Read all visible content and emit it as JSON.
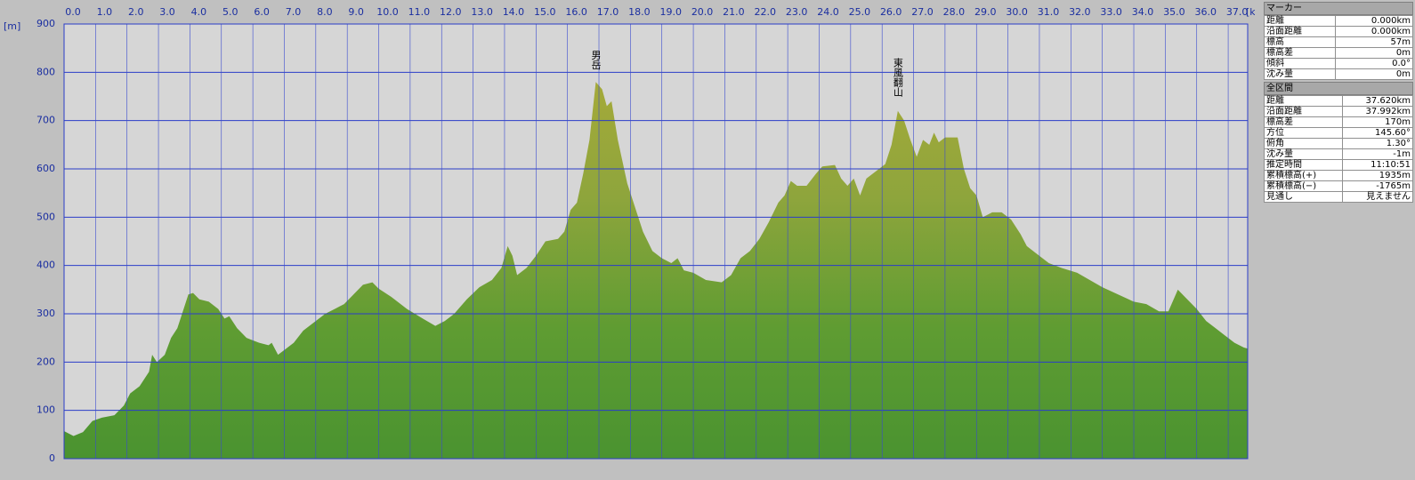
{
  "chart_data": {
    "type": "area",
    "x_unit": "[km]",
    "y_unit": "[m]",
    "x": [
      0,
      0.3,
      0.6,
      0.9,
      1.2,
      1.6,
      1.9,
      2.1,
      2.4,
      2.7,
      2.8,
      2.95,
      3.2,
      3.4,
      3.6,
      3.8,
      3.95,
      4.1,
      4.3,
      4.6,
      4.9,
      5.1,
      5.25,
      5.5,
      5.8,
      6.2,
      6.5,
      6.6,
      6.8,
      7.0,
      7.3,
      7.6,
      8.0,
      8.3,
      8.6,
      8.9,
      9.2,
      9.5,
      9.8,
      10.0,
      10.4,
      10.9,
      11.4,
      11.8,
      12.1,
      12.4,
      12.8,
      13.2,
      13.6,
      13.9,
      14.1,
      14.25,
      14.4,
      14.7,
      15.0,
      15.3,
      15.7,
      15.9,
      16.1,
      16.3,
      16.5,
      16.7,
      16.9,
      17.1,
      17.25,
      17.4,
      17.6,
      17.9,
      18.1,
      18.4,
      18.7,
      19.0,
      19.3,
      19.5,
      19.7,
      20.0,
      20.4,
      20.9,
      21.2,
      21.5,
      21.8,
      22.1,
      22.4,
      22.7,
      22.9,
      23.1,
      23.3,
      23.6,
      23.9,
      24.1,
      24.5,
      24.7,
      24.9,
      25.1,
      25.3,
      25.5,
      25.8,
      26.1,
      26.3,
      26.5,
      26.7,
      26.9,
      27.1,
      27.3,
      27.5,
      27.65,
      27.8,
      28.0,
      28.2,
      28.4,
      28.6,
      28.8,
      29.0,
      29.2,
      29.5,
      29.8,
      30.1,
      30.4,
      30.6,
      30.9,
      31.3,
      31.7,
      32.2,
      32.6,
      33.0,
      33.5,
      34.0,
      34.4,
      34.8,
      35.1,
      35.4,
      35.7,
      36.0,
      36.3,
      36.6,
      36.9,
      37.2,
      37.5,
      37.62
    ],
    "values": [
      57,
      47,
      55,
      78,
      85,
      90,
      110,
      135,
      150,
      180,
      215,
      200,
      215,
      250,
      270,
      310,
      340,
      343,
      330,
      325,
      310,
      290,
      295,
      270,
      250,
      240,
      235,
      240,
      215,
      225,
      240,
      265,
      285,
      300,
      310,
      320,
      340,
      360,
      365,
      352,
      335,
      310,
      290,
      275,
      285,
      300,
      330,
      355,
      370,
      395,
      440,
      420,
      380,
      395,
      420,
      450,
      455,
      470,
      515,
      530,
      590,
      660,
      780,
      765,
      730,
      740,
      660,
      570,
      530,
      470,
      430,
      415,
      405,
      415,
      390,
      385,
      370,
      365,
      380,
      415,
      430,
      455,
      490,
      530,
      545,
      575,
      565,
      565,
      590,
      605,
      608,
      580,
      565,
      580,
      545,
      580,
      595,
      610,
      650,
      720,
      700,
      660,
      625,
      660,
      650,
      675,
      655,
      665,
      665,
      665,
      600,
      560,
      545,
      500,
      510,
      510,
      495,
      465,
      440,
      425,
      405,
      395,
      385,
      370,
      355,
      340,
      325,
      320,
      305,
      305,
      350,
      330,
      310,
      285,
      270,
      255,
      240,
      230,
      228
    ],
    "xlim": [
      0,
      37.62
    ],
    "ylim": [
      0,
      900
    ],
    "xticks": [
      {
        "value": 0,
        "label": "0.0"
      },
      {
        "value": 1,
        "label": "1.0"
      },
      {
        "value": 2,
        "label": "2.0"
      },
      {
        "value": 3,
        "label": "3.0"
      },
      {
        "value": 4,
        "label": "4.0"
      },
      {
        "value": 5,
        "label": "5.0"
      },
      {
        "value": 6,
        "label": "6.0"
      },
      {
        "value": 7,
        "label": "7.0"
      },
      {
        "value": 8,
        "label": "8.0"
      },
      {
        "value": 9,
        "label": "9.0"
      },
      {
        "value": 10,
        "label": "10.0"
      },
      {
        "value": 11,
        "label": "11.0"
      },
      {
        "value": 12,
        "label": "12.0"
      },
      {
        "value": 13,
        "label": "13.0"
      },
      {
        "value": 14,
        "label": "14.0"
      },
      {
        "value": 15,
        "label": "15.0"
      },
      {
        "value": 16,
        "label": "16.0"
      },
      {
        "value": 17,
        "label": "17.0"
      },
      {
        "value": 18,
        "label": "18.0"
      },
      {
        "value": 19,
        "label": "19.0"
      },
      {
        "value": 20,
        "label": "20.0"
      },
      {
        "value": 21,
        "label": "21.0"
      },
      {
        "value": 22,
        "label": "22.0"
      },
      {
        "value": 23,
        "label": "23.0"
      },
      {
        "value": 24,
        "label": "24.0"
      },
      {
        "value": 25,
        "label": "25.0"
      },
      {
        "value": 26,
        "label": "26.0"
      },
      {
        "value": 27,
        "label": "27.0"
      },
      {
        "value": 28,
        "label": "28.0"
      },
      {
        "value": 29,
        "label": "29.0"
      },
      {
        "value": 30,
        "label": "30.0"
      },
      {
        "value": 31,
        "label": "31.0"
      },
      {
        "value": 32,
        "label": "32.0"
      },
      {
        "value": 33,
        "label": "33.0"
      },
      {
        "value": 34,
        "label": "34.0"
      },
      {
        "value": 35,
        "label": "35.0"
      },
      {
        "value": 36,
        "label": "36.0"
      },
      {
        "value": 37,
        "label": "37.0"
      }
    ],
    "yticks": [
      0,
      100,
      200,
      300,
      400,
      500,
      600,
      700,
      800,
      900
    ],
    "grid": true,
    "annotations": [
      {
        "text": "男岳",
        "x": 16.9,
        "y": 780
      },
      {
        "text": "東風翻山",
        "x": 26.5,
        "y": 720
      }
    ]
  },
  "panel": {
    "marker": {
      "title": "マーカー",
      "rows": [
        [
          "距離",
          "0.000km"
        ],
        [
          "沿面距離",
          "0.000km"
        ],
        [
          "標高",
          "57m"
        ],
        [
          "標高差",
          "0m"
        ],
        [
          "傾斜",
          "0.0°"
        ],
        [
          "沈み量",
          "0m"
        ]
      ]
    },
    "section": {
      "title": "全区間",
      "rows": [
        [
          "距離",
          "37.620km"
        ],
        [
          "沿面距離",
          "37.992km"
        ],
        [
          "標高差",
          "170m"
        ],
        [
          "方位",
          "145.60°"
        ],
        [
          "俯角",
          "1.30°"
        ],
        [
          "沈み量",
          "-1m"
        ],
        [
          "推定時間",
          "11:10:51"
        ],
        [
          "累積標高(+)",
          "1935m"
        ],
        [
          "累積標高(−)",
          "-1765m"
        ],
        [
          "見通し",
          "見えません"
        ]
      ]
    }
  }
}
